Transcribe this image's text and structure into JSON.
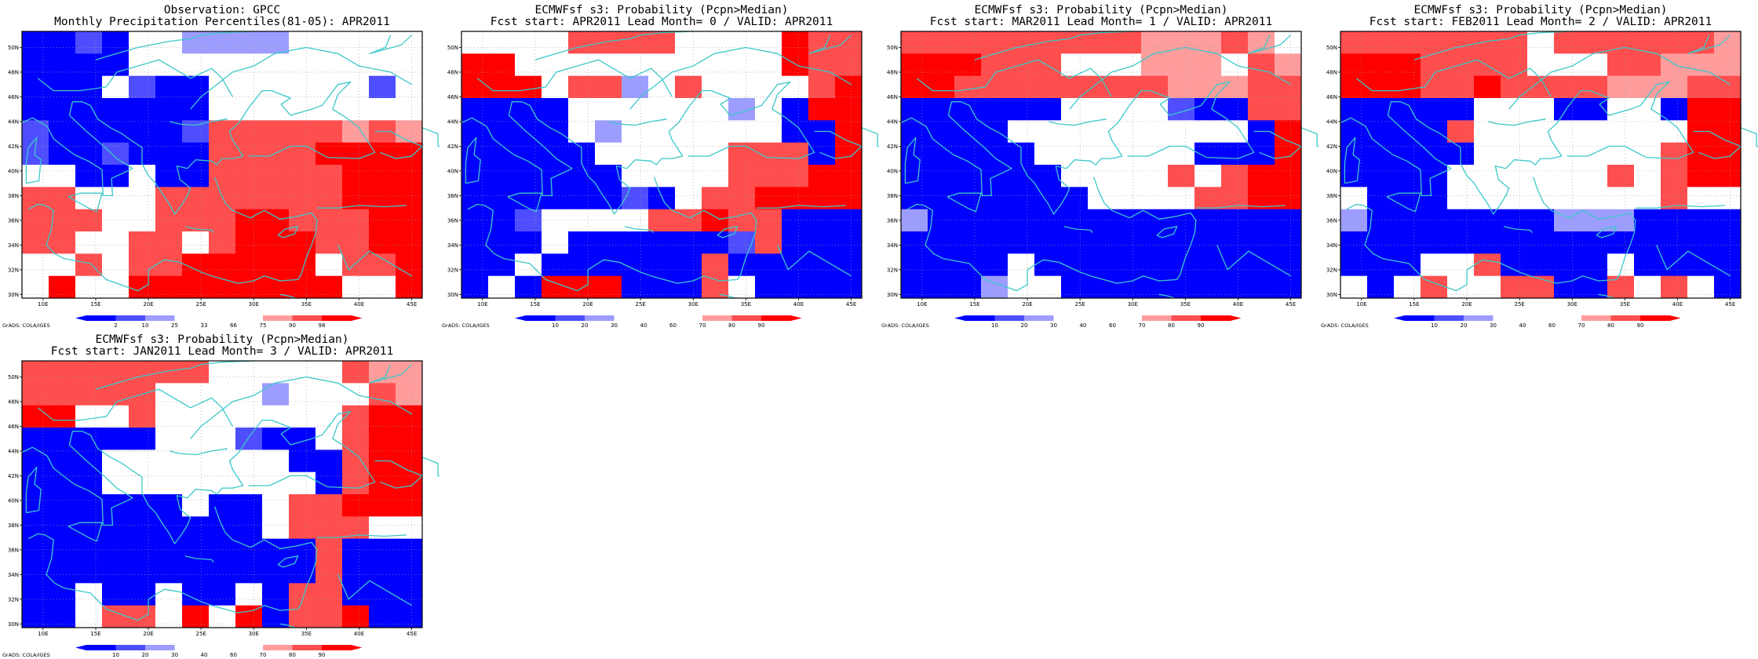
{
  "footer": "GrADS: COLA/IGES",
  "axes": {
    "lon_ticks": [
      "10E",
      "15E",
      "20E",
      "25E",
      "30E",
      "35E",
      "40E",
      "45E"
    ],
    "lat_ticks": [
      "30N",
      "32N",
      "34N",
      "36N",
      "38N",
      "40N",
      "42N",
      "44N",
      "46N",
      "48N",
      "50N"
    ]
  },
  "colors": {
    "strong_blue": "#0000ff",
    "mid_blue": "#4e4eff",
    "light_blue": "#9d9dff",
    "white": "#ffffff",
    "light_red": "#ff9d9d",
    "mid_red": "#ff4e4e",
    "strong_red": "#ff0000",
    "coast": "#3cc8c8"
  },
  "panels": [
    {
      "title1": "Observation: GPCC",
      "title2": "Monthly Precipitation Percentiles(81-05): APR2011",
      "colorbar_labels": [
        "2",
        "10",
        "25",
        "33",
        "66",
        "75",
        "90",
        "98"
      ],
      "grid": [
        "BBMBWWLLLLWWWWW",
        "BBBBWWWWWWWWWWW",
        "BBBWMBBWWWWWWMW",
        "BBBBBBBWWWWWWWW",
        "MBBBBBMRRRRRPRP",
        "MBBMBBBRRRRSSSS",
        "WWBBWBBRRRRRSSS",
        "RRWWWRRRRRRRSSS",
        "RRRWWRRRSSRRRSS",
        "RRWWRRWRSSSRRSS",
        "WWRWRRSSSSSWRRS",
        "WSWWSSSSSSSSWWS"
      ]
    },
    {
      "title1": "ECMWFsf s3: Probability (Pcpn>Median)",
      "title2": "Fcst start: APR2011  Lead Month= 0 / VALID: APR2011",
      "colorbar_labels": [
        "10",
        "20",
        "30",
        "40",
        "60",
        "70",
        "80",
        "90"
      ],
      "grid": [
        "WWWWRRRRWWWWSRR",
        "SSWWWWWWWWWWSRR",
        "SSSWRRLWRWWWWRS",
        "BBBBWWWWWWLWBSS",
        "BBBBWLWWWWWWBBS",
        "BBBBBWWWWWRRRBS",
        "BBBBBBWWWWRRRSS",
        "BBBBBBMBWRRSSSS",
        "BBMWWWWRRSRRBBB",
        "BBBWBBBBBBMRBBB",
        "BBWBBBBBBRBBBBB",
        "BWBSSSBBBRWBBBB"
      ]
    },
    {
      "title1": "ECMWFsf s3: Probability (Pcpn>Median)",
      "title2": "Fcst start: MAR2011  Lead Month= 1 / VALID: APR2011",
      "colorbar_labels": [
        "10",
        "20",
        "30",
        "40",
        "60",
        "70",
        "80",
        "90"
      ],
      "grid": [
        "RRRRRRRRRPPPRPW",
        "SSSRRRWWWPPPWRP",
        "SSRRRRRRRRPPPRR",
        "BBBBBBWWWWMBBRR",
        "BBBBWWWWWWWWWBS",
        "BBBBBWWWWWWBBBS",
        "BBBBBBWWWWRWRSS",
        "BBBBBBBWWWWRRSS",
        "LBBBBBBBBBBBBBB",
        "BBBBBBBBBBBBBBB",
        "BBBBWBBBBBBBBBB",
        "BBBLWWBBBBBBBBB"
      ]
    },
    {
      "title1": "ECMWFsf s3: Probability (Pcpn>Median)",
      "title2": "Fcst start: FEB2011  Lead Month= 2 / VALID: APR2011",
      "colorbar_labels": [
        "10",
        "20",
        "30",
        "40",
        "60",
        "70",
        "80",
        "90"
      ],
      "grid": [
        "RRRRRRRWRRRRRRP",
        "SSSRRRRWWWRRPPP",
        "SSSRRSRRRRPPPRR",
        "BBBBBWWWBBWWBSS",
        "BBBBRWWWWWWWWSS",
        "BBBBBWWWWWWWRSS",
        "BBBBWWWWWWRWRSS",
        "WBBBWWWWWWWWRWW",
        "LBBBBBBBLLLBBBB",
        "BBBBBBBBBBBBBBB",
        "BBBWWRBBBBWBBBB",
        "WBWRWWRRBBRWRWB"
      ]
    },
    {
      "title1": "ECMWFsf s3: Probability (Pcpn>Median)",
      "title2": "Fcst start: JAN2011  Lead Month= 3 / VALID: APR2011",
      "colorbar_labels": [
        "10",
        "20",
        "30",
        "40",
        "60",
        "70",
        "80",
        "90"
      ],
      "grid": [
        "RRRRRRRWWWWWRPP",
        "RRRRRWWWWLWWWRP",
        "SSWWRWWWWWWWRSS",
        "BBBBBWWWMBBWRSS",
        "BBBWWWWWWWBBRSS",
        "BBBWWWWWWWWBRSS",
        "BBBBBBWBBWRRSSS",
        "BBBBBBBBBWRRRWW",
        "BBBBBBBBBBBRBBB",
        "BBBBBBBBBBBRBBB",
        "BBWBBWBBWBRRBBB",
        "BBWRRWSWSBRRSBB"
      ]
    }
  ]
}
